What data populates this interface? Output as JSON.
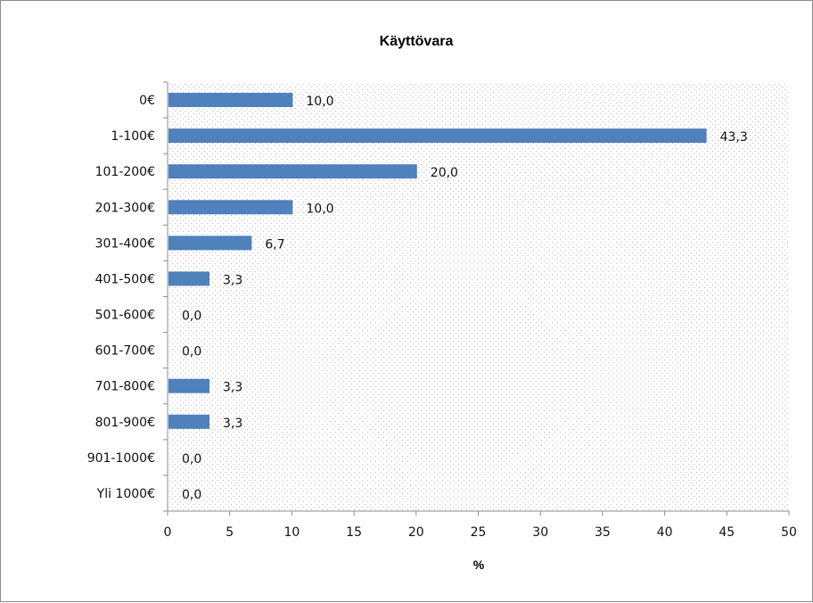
{
  "chart_data": {
    "type": "bar",
    "orientation": "horizontal",
    "title": "Käyttövara",
    "xlabel": "%",
    "ylabel": "",
    "xlim": [
      0,
      50
    ],
    "x_ticks": [
      0,
      5,
      10,
      15,
      20,
      25,
      30,
      35,
      40,
      45,
      50
    ],
    "categories": [
      "0€",
      "1-100€",
      "101-200€",
      "201-300€",
      "301-400€",
      "401-500€",
      "501-600€",
      "601-700€",
      "701-800€",
      "801-900€",
      "901-1000€",
      "Yli 1000€"
    ],
    "values": [
      10.0,
      43.3,
      20.0,
      10.0,
      6.7,
      3.3,
      0.0,
      0.0,
      3.3,
      3.3,
      0.0,
      0.0
    ],
    "data_labels": [
      "10,0",
      "43,3",
      "20,0",
      "10,0",
      "6,7",
      "3,3",
      "0,0",
      "0,0",
      "3,3",
      "3,3",
      "0,0",
      "0,0"
    ],
    "bar_color": "#4f81bd",
    "plot_area_pattern": "dotted",
    "grid": false,
    "legend": "none"
  }
}
